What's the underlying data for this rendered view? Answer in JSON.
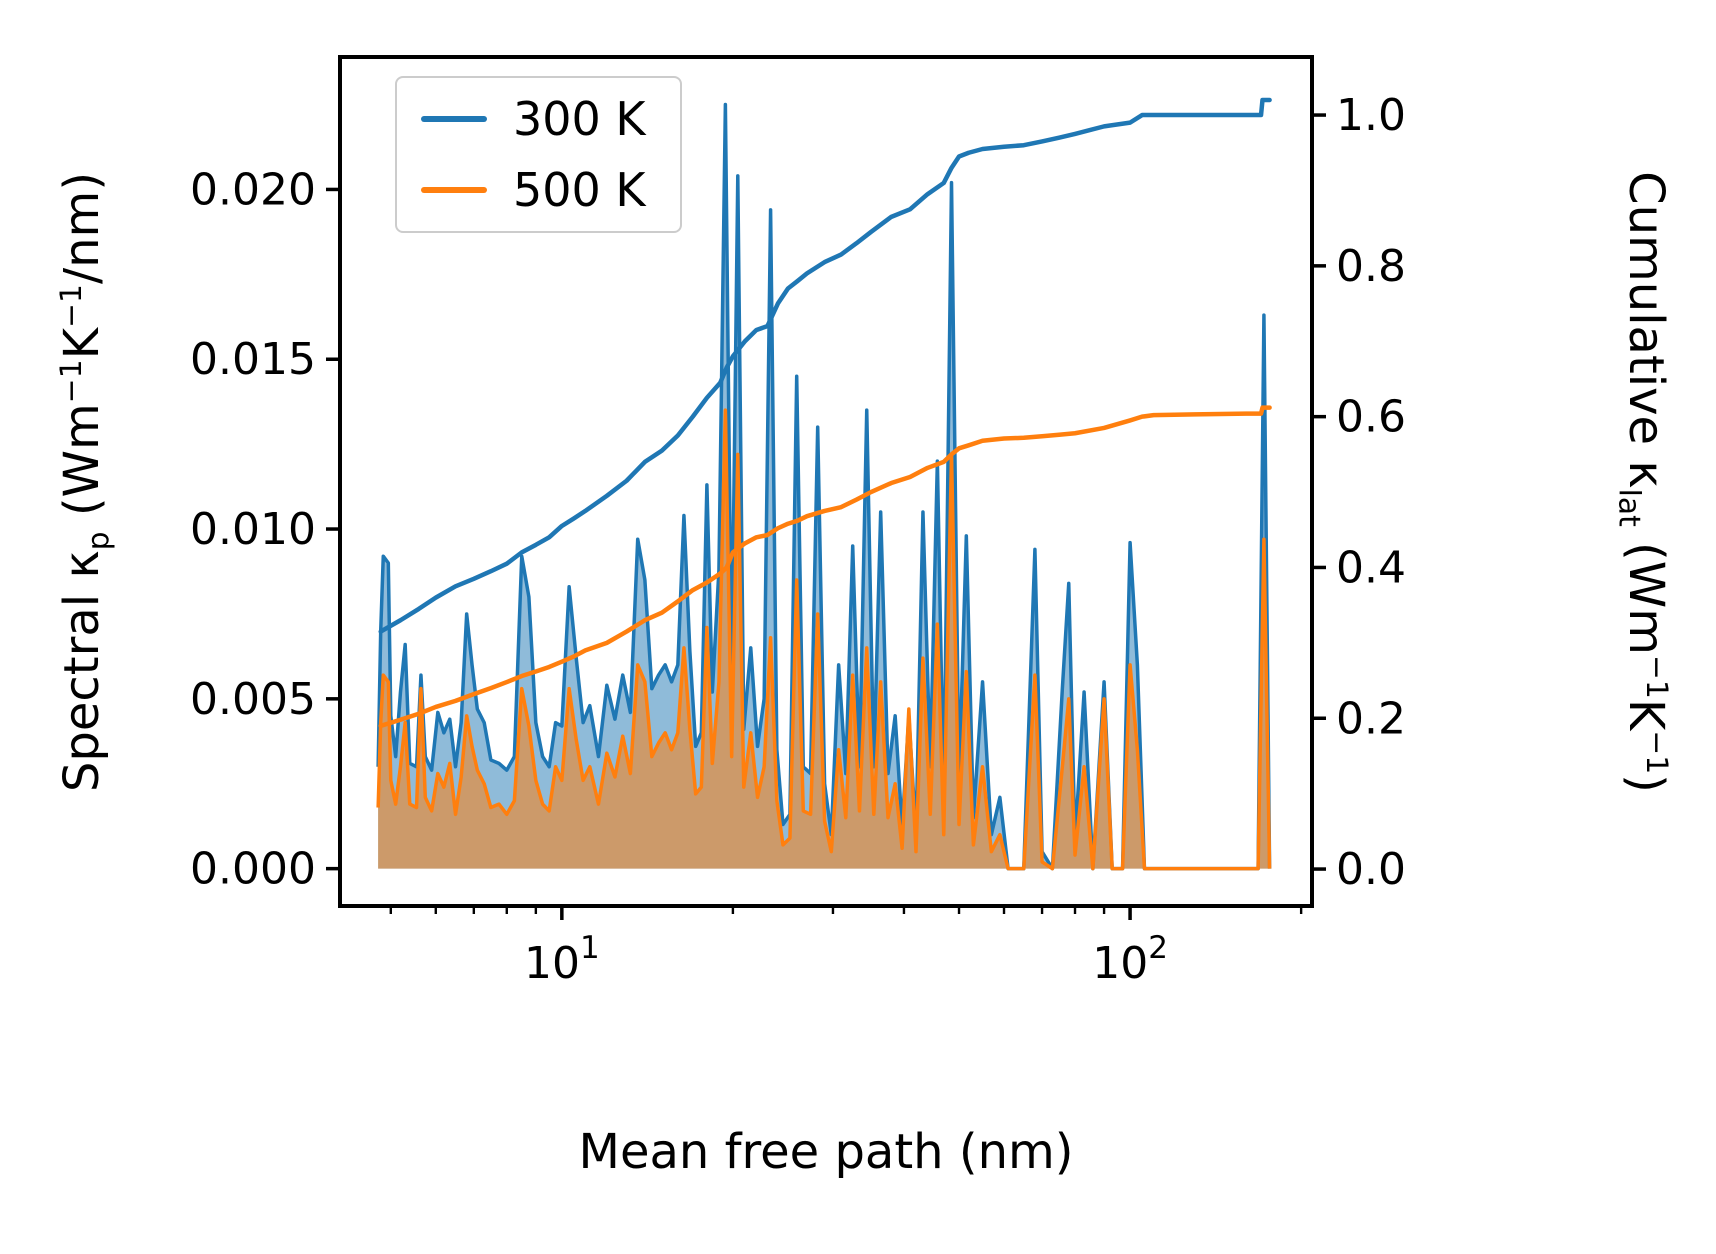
{
  "chart_data": {
    "type": "line",
    "title": "",
    "xlabel": "Mean free path (nm)",
    "ylabel_left": "Spectral κp (Wm−1K−1/nm)",
    "ylabel_right": "Cumulative κlat (Wm−1K−1)",
    "x_scale": "log",
    "xlim": [
      4.07,
      209
    ],
    "ylim_left": [
      -0.0011,
      0.0239
    ],
    "ylim_right": [
      -0.049,
      1.077
    ],
    "grid": false,
    "legend_position": "upper left",
    "colors": {
      "blue": "#1f77b4",
      "orange": "#ff7f0e"
    },
    "label_segments": {
      "ylabel_left": [
        {
          "t": "Spectral κ"
        },
        {
          "t": "p",
          "s": "sub"
        },
        {
          "t": " (Wm"
        },
        {
          "t": "−1",
          "s": "sup"
        },
        {
          "t": "K"
        },
        {
          "t": "−1",
          "s": "sup"
        },
        {
          "t": "/nm)"
        }
      ],
      "ylabel_right": [
        {
          "t": "Cumulative κ"
        },
        {
          "t": "lat",
          "s": "sub"
        },
        {
          "t": " (Wm"
        },
        {
          "t": "−1",
          "s": "sup"
        },
        {
          "t": "K"
        },
        {
          "t": "−1",
          "s": "sup"
        },
        {
          "t": ")"
        }
      ]
    },
    "x_ticks": [
      {
        "v": 10,
        "base": "10",
        "exp": "1"
      },
      {
        "v": 100,
        "base": "10",
        "exp": "2"
      }
    ],
    "x_minor_ticks": [
      5,
      6,
      7,
      8,
      9,
      20,
      30,
      40,
      50,
      60,
      70,
      80,
      90,
      200
    ],
    "y_ticks_left": [
      {
        "v": 0.0,
        "label": "0.000"
      },
      {
        "v": 0.005,
        "label": "0.005"
      },
      {
        "v": 0.01,
        "label": "0.010"
      },
      {
        "v": 0.015,
        "label": "0.015"
      },
      {
        "v": 0.02,
        "label": "0.020"
      }
    ],
    "y_ticks_right": [
      {
        "v": 0.0,
        "label": "0.0"
      },
      {
        "v": 0.2,
        "label": "0.2"
      },
      {
        "v": 0.4,
        "label": "0.4"
      },
      {
        "v": 0.6,
        "label": "0.6"
      },
      {
        "v": 0.8,
        "label": "0.8"
      },
      {
        "v": 1.0,
        "label": "1.0"
      }
    ],
    "legend": [
      {
        "label": "300 K",
        "color": "#1f77b4"
      },
      {
        "label": "500 K",
        "color": "#ff7f0e"
      }
    ],
    "series": [
      {
        "name": "300 K spectral",
        "axis": "left",
        "kind": "area",
        "color": "#1f77b4",
        "fill_opacity": 0.5,
        "line_width": 3.5,
        "x": [
          4.75,
          4.8,
          4.85,
          4.95,
          5.0,
          5.1,
          5.2,
          5.3,
          5.4,
          5.55,
          5.65,
          5.75,
          5.9,
          6.05,
          6.2,
          6.35,
          6.5,
          6.65,
          6.8,
          6.95,
          7.1,
          7.3,
          7.5,
          7.75,
          8.0,
          8.25,
          8.5,
          8.75,
          9.0,
          9.25,
          9.5,
          9.75,
          10.0,
          10.3,
          10.6,
          10.9,
          11.2,
          11.6,
          12.0,
          12.4,
          12.8,
          13.2,
          13.6,
          14.0,
          14.4,
          14.8,
          15.2,
          15.6,
          16.0,
          16.4,
          16.8,
          17.2,
          17.6,
          18.0,
          18.4,
          18.9,
          19.4,
          19.9,
          20.4,
          20.9,
          21.5,
          22.1,
          22.7,
          23.3,
          23.9,
          24.5,
          25.2,
          25.9,
          26.6,
          27.4,
          28.2,
          29.0,
          29.8,
          30.7,
          31.6,
          32.5,
          33.4,
          34.4,
          35.4,
          36.4,
          37.5,
          38.6,
          39.7,
          40.8,
          42.0,
          43.2,
          44.5,
          45.8,
          47.0,
          48.5,
          50.0,
          51.5,
          53.0,
          55.0,
          57.0,
          59.0,
          61.0,
          63.0,
          65.0,
          68.0,
          70.0,
          73.0,
          76.0,
          78.0,
          80.0,
          83.0,
          86.0,
          90.0,
          93.0,
          97.0,
          100.0,
          103.0,
          106.0,
          115.0,
          140.0,
          168.0,
          172.0,
          176.0
        ],
        "y": [
          0.003,
          0.007,
          0.0092,
          0.009,
          0.0045,
          0.0033,
          0.0052,
          0.0066,
          0.0031,
          0.003,
          0.0057,
          0.0033,
          0.0029,
          0.0046,
          0.004,
          0.0044,
          0.003,
          0.0043,
          0.0075,
          0.006,
          0.0047,
          0.0043,
          0.0032,
          0.0031,
          0.0029,
          0.0033,
          0.0092,
          0.008,
          0.0043,
          0.0033,
          0.003,
          0.0043,
          0.0042,
          0.0083,
          0.0062,
          0.0043,
          0.0048,
          0.0033,
          0.0054,
          0.0044,
          0.0057,
          0.0046,
          0.0097,
          0.0085,
          0.0053,
          0.0057,
          0.006,
          0.0055,
          0.006,
          0.0104,
          0.0064,
          0.0036,
          0.004,
          0.0113,
          0.0052,
          0.0088,
          0.0225,
          0.0056,
          0.0204,
          0.0041,
          0.0065,
          0.0036,
          0.005,
          0.0194,
          0.0035,
          0.0013,
          0.0016,
          0.0145,
          0.003,
          0.0028,
          0.013,
          0.0025,
          0.001,
          0.006,
          0.0028,
          0.0095,
          0.003,
          0.0135,
          0.003,
          0.0105,
          0.0028,
          0.0045,
          0.0012,
          0.0045,
          0.001,
          0.0105,
          0.003,
          0.012,
          0.002,
          0.0202,
          0.0025,
          0.0098,
          0.0015,
          0.0055,
          0.001,
          0.0021,
          0.0,
          0.0,
          0.0,
          0.0094,
          0.0005,
          0.0,
          0.0053,
          0.0084,
          0.0008,
          0.0052,
          0.0,
          0.0055,
          0.0,
          0.0,
          0.0096,
          0.006,
          0.0,
          0.0,
          0.0,
          0.0,
          0.0163,
          0.0
        ]
      },
      {
        "name": "500 K spectral",
        "axis": "left",
        "kind": "area",
        "color": "#ff7f0e",
        "fill_opacity": 0.55,
        "line_width": 3.5,
        "x": [
          4.75,
          4.8,
          4.85,
          4.95,
          5.0,
          5.1,
          5.2,
          5.3,
          5.4,
          5.55,
          5.65,
          5.75,
          5.9,
          6.05,
          6.2,
          6.35,
          6.5,
          6.65,
          6.8,
          6.95,
          7.1,
          7.3,
          7.5,
          7.75,
          8.0,
          8.25,
          8.5,
          8.75,
          9.0,
          9.25,
          9.5,
          9.75,
          10.0,
          10.3,
          10.6,
          10.9,
          11.2,
          11.6,
          12.0,
          12.4,
          12.8,
          13.2,
          13.6,
          14.0,
          14.4,
          14.8,
          15.2,
          15.6,
          16.0,
          16.4,
          16.8,
          17.2,
          17.6,
          18.0,
          18.4,
          18.9,
          19.4,
          19.9,
          20.4,
          20.9,
          21.5,
          22.1,
          22.7,
          23.3,
          23.9,
          24.5,
          25.2,
          25.9,
          26.6,
          27.4,
          28.2,
          29.0,
          29.8,
          30.7,
          31.6,
          32.5,
          33.4,
          34.4,
          35.4,
          36.4,
          37.5,
          38.6,
          39.7,
          40.8,
          42.0,
          43.2,
          44.5,
          45.8,
          47.0,
          48.5,
          50.0,
          51.5,
          53.0,
          55.0,
          57.0,
          59.0,
          61.0,
          63.0,
          65.0,
          68.0,
          70.0,
          73.0,
          76.0,
          78.0,
          80.0,
          83.0,
          86.0,
          90.0,
          93.0,
          97.0,
          100.0,
          103.0,
          106.0,
          115.0,
          140.0,
          168.0,
          172.0,
          176.0
        ],
        "y": [
          0.0018,
          0.0043,
          0.0057,
          0.0055,
          0.0026,
          0.0019,
          0.003,
          0.0043,
          0.0019,
          0.0018,
          0.0053,
          0.0021,
          0.0017,
          0.0028,
          0.0024,
          0.0031,
          0.0016,
          0.0027,
          0.0045,
          0.0036,
          0.0029,
          0.0025,
          0.0018,
          0.0019,
          0.0016,
          0.002,
          0.0053,
          0.0042,
          0.0026,
          0.0019,
          0.0017,
          0.003,
          0.0026,
          0.0053,
          0.0038,
          0.0026,
          0.003,
          0.0019,
          0.0034,
          0.0027,
          0.0039,
          0.0028,
          0.006,
          0.0055,
          0.0033,
          0.0037,
          0.004,
          0.0035,
          0.004,
          0.0065,
          0.0041,
          0.0022,
          0.0024,
          0.0071,
          0.0031,
          0.0055,
          0.0135,
          0.0033,
          0.0122,
          0.0024,
          0.004,
          0.0021,
          0.003,
          0.0068,
          0.002,
          0.0007,
          0.0009,
          0.0085,
          0.0017,
          0.0016,
          0.0075,
          0.0014,
          0.0005,
          0.0035,
          0.0015,
          0.0057,
          0.0017,
          0.0065,
          0.0016,
          0.0055,
          0.0015,
          0.0025,
          0.0006,
          0.0047,
          0.0005,
          0.0062,
          0.0016,
          0.0072,
          0.001,
          0.0122,
          0.0013,
          0.0058,
          0.0007,
          0.003,
          0.0005,
          0.001,
          0.0,
          0.0,
          0.0,
          0.0057,
          0.0002,
          0.0,
          0.003,
          0.005,
          0.0004,
          0.003,
          0.0,
          0.005,
          0.0,
          0.0,
          0.006,
          0.0035,
          0.0,
          0.0,
          0.0,
          0.0,
          0.0097,
          0.0
        ]
      },
      {
        "name": "300 K cumulative",
        "axis": "right",
        "kind": "line",
        "color": "#1f77b4",
        "line_width": 4.5,
        "x": [
          4.8,
          5.2,
          5.6,
          6.0,
          6.5,
          7.0,
          7.5,
          8.0,
          8.5,
          9.0,
          9.5,
          10,
          10.5,
          11,
          12,
          13,
          14,
          15,
          16,
          17,
          18,
          19,
          19.5,
          20,
          21,
          22,
          23,
          24,
          25,
          26,
          27,
          29,
          31,
          33,
          35,
          38,
          41,
          44,
          47,
          48.5,
          50,
          52,
          55,
          60,
          65,
          70,
          75,
          80,
          90,
          100,
          105,
          110,
          130,
          160,
          170,
          171,
          176
        ],
        "y": [
          0.315,
          0.33,
          0.345,
          0.36,
          0.375,
          0.385,
          0.395,
          0.405,
          0.42,
          0.43,
          0.44,
          0.455,
          0.465,
          0.475,
          0.495,
          0.515,
          0.54,
          0.555,
          0.575,
          0.6,
          0.625,
          0.645,
          0.665,
          0.68,
          0.7,
          0.715,
          0.72,
          0.75,
          0.77,
          0.78,
          0.79,
          0.805,
          0.815,
          0.83,
          0.845,
          0.865,
          0.875,
          0.895,
          0.91,
          0.93,
          0.945,
          0.95,
          0.955,
          0.958,
          0.96,
          0.965,
          0.97,
          0.975,
          0.985,
          0.99,
          1.0,
          1.0,
          1.0,
          1.0,
          1.0,
          1.02,
          1.02
        ]
      },
      {
        "name": "500 K cumulative",
        "axis": "right",
        "kind": "line",
        "color": "#ff7f0e",
        "line_width": 4.5,
        "x": [
          4.8,
          5.2,
          5.6,
          6.0,
          6.5,
          7.0,
          7.5,
          8.0,
          8.5,
          9.0,
          9.5,
          10,
          10.5,
          11,
          12,
          13,
          14,
          15,
          16,
          17,
          18,
          19,
          19.5,
          20,
          21,
          22,
          23,
          24,
          25,
          26,
          27,
          29,
          31,
          33,
          35,
          38,
          41,
          44,
          47,
          48.5,
          50,
          52,
          55,
          60,
          65,
          70,
          75,
          80,
          90,
          100,
          105,
          110,
          130,
          160,
          170,
          171,
          176
        ],
        "y": [
          0.19,
          0.198,
          0.206,
          0.215,
          0.223,
          0.232,
          0.24,
          0.248,
          0.256,
          0.262,
          0.268,
          0.275,
          0.282,
          0.29,
          0.3,
          0.315,
          0.33,
          0.34,
          0.355,
          0.37,
          0.38,
          0.392,
          0.4,
          0.42,
          0.432,
          0.44,
          0.443,
          0.452,
          0.458,
          0.462,
          0.468,
          0.475,
          0.48,
          0.49,
          0.5,
          0.512,
          0.52,
          0.532,
          0.54,
          0.55,
          0.558,
          0.562,
          0.568,
          0.571,
          0.572,
          0.574,
          0.576,
          0.578,
          0.585,
          0.595,
          0.6,
          0.602,
          0.603,
          0.604,
          0.604,
          0.612,
          0.612
        ]
      }
    ]
  }
}
